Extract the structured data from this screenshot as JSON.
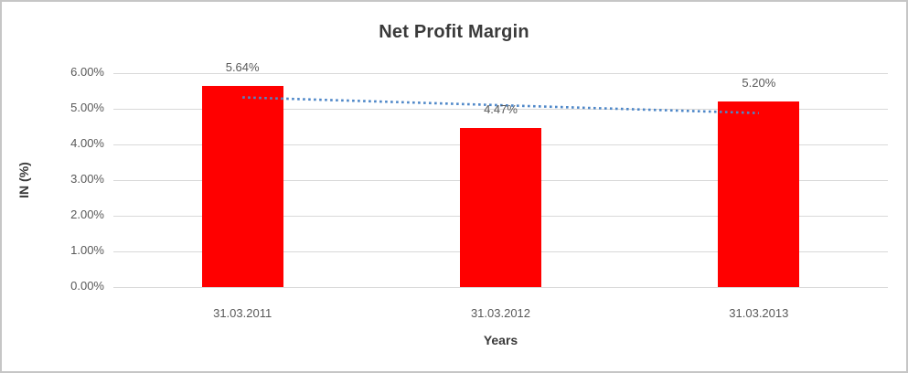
{
  "chart_data": {
    "type": "bar",
    "title": "Net Profit Margin",
    "xlabel": "Years",
    "ylabel": "IN (%)",
    "categories": [
      "31.03.2011",
      "31.03.2012",
      "31.03.2013"
    ],
    "values": [
      5.64,
      4.47,
      5.2
    ],
    "data_labels": [
      "5.64%",
      "4.47%",
      "5.20%"
    ],
    "ylim": [
      0,
      6
    ],
    "ytick_labels": [
      "0.00%",
      "1.00%",
      "2.00%",
      "3.00%",
      "4.00%",
      "5.00%",
      "6.00%"
    ],
    "grid": true,
    "legend": "none",
    "trendline": {
      "type": "linear",
      "style": "dotted",
      "start_value": 5.32,
      "end_value": 4.88
    },
    "colors": {
      "bar": "#FF0000",
      "trendline": "#4E87C8",
      "gridline": "#D9D9D9",
      "tick_text": "#595959",
      "title_text": "#3A3A3A",
      "data_label_text": "#595959",
      "border": "#C6C6C6",
      "background": "#FFFFFF"
    }
  }
}
